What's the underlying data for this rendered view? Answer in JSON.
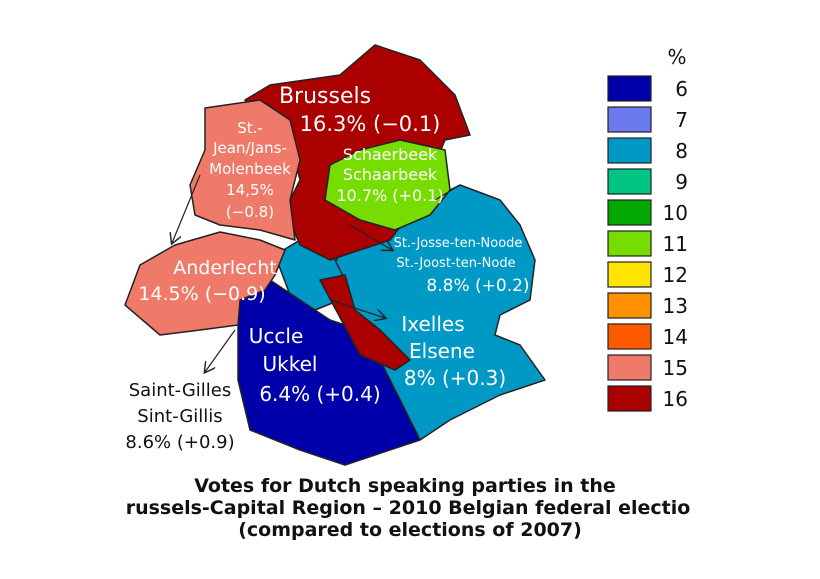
{
  "regions": [
    {
      "lines": [
        "Brussels",
        "16.3% (−0.1)"
      ]
    },
    {
      "lines": [
        "St.-",
        "Jean/Jans-",
        "Molenbeek",
        "14,5%",
        "(−0.8)"
      ]
    },
    {
      "lines": [
        "Schaerbeek",
        "Schaarbeek",
        "10.7% (+0.1)"
      ]
    },
    {
      "lines": [
        "St.-Josse-ten-Noode",
        "St.-Joost-ten-Node",
        "8.8% (+0.2)"
      ]
    },
    {
      "lines": [
        "Anderlecht",
        "14.5% (−0.9)"
      ]
    },
    {
      "lines": [
        "Ixelles",
        "Elsene",
        "8% (+0.3)"
      ]
    },
    {
      "lines": [
        "Uccle",
        "Ukkel",
        "6.4% (+0.4)"
      ]
    },
    {
      "lines": [
        "Saint-Gilles",
        "Sint-Gillis",
        "8.6% (+0.9)"
      ]
    }
  ],
  "legend": {
    "header": "%",
    "items": [
      {
        "value": 6,
        "color": "#0000aa"
      },
      {
        "value": 7,
        "color": "#6b7bef"
      },
      {
        "value": 8,
        "color": "#0099c6"
      },
      {
        "value": 9,
        "color": "#00c482"
      },
      {
        "value": 10,
        "color": "#00a800"
      },
      {
        "value": 11,
        "color": "#77dd00"
      },
      {
        "value": 12,
        "color": "#ffe400"
      },
      {
        "value": 13,
        "color": "#ff9000"
      },
      {
        "value": 14,
        "color": "#ff5a00"
      },
      {
        "value": 15,
        "color": "#f07a6a"
      },
      {
        "value": 16,
        "color": "#ab0000"
      }
    ]
  },
  "title": {
    "lines": [
      "Votes for Dutch speaking parties in the",
      "russels-Capital Region – 2010 Belgian federal electio",
      "(compared to elections of 2007)"
    ]
  }
}
